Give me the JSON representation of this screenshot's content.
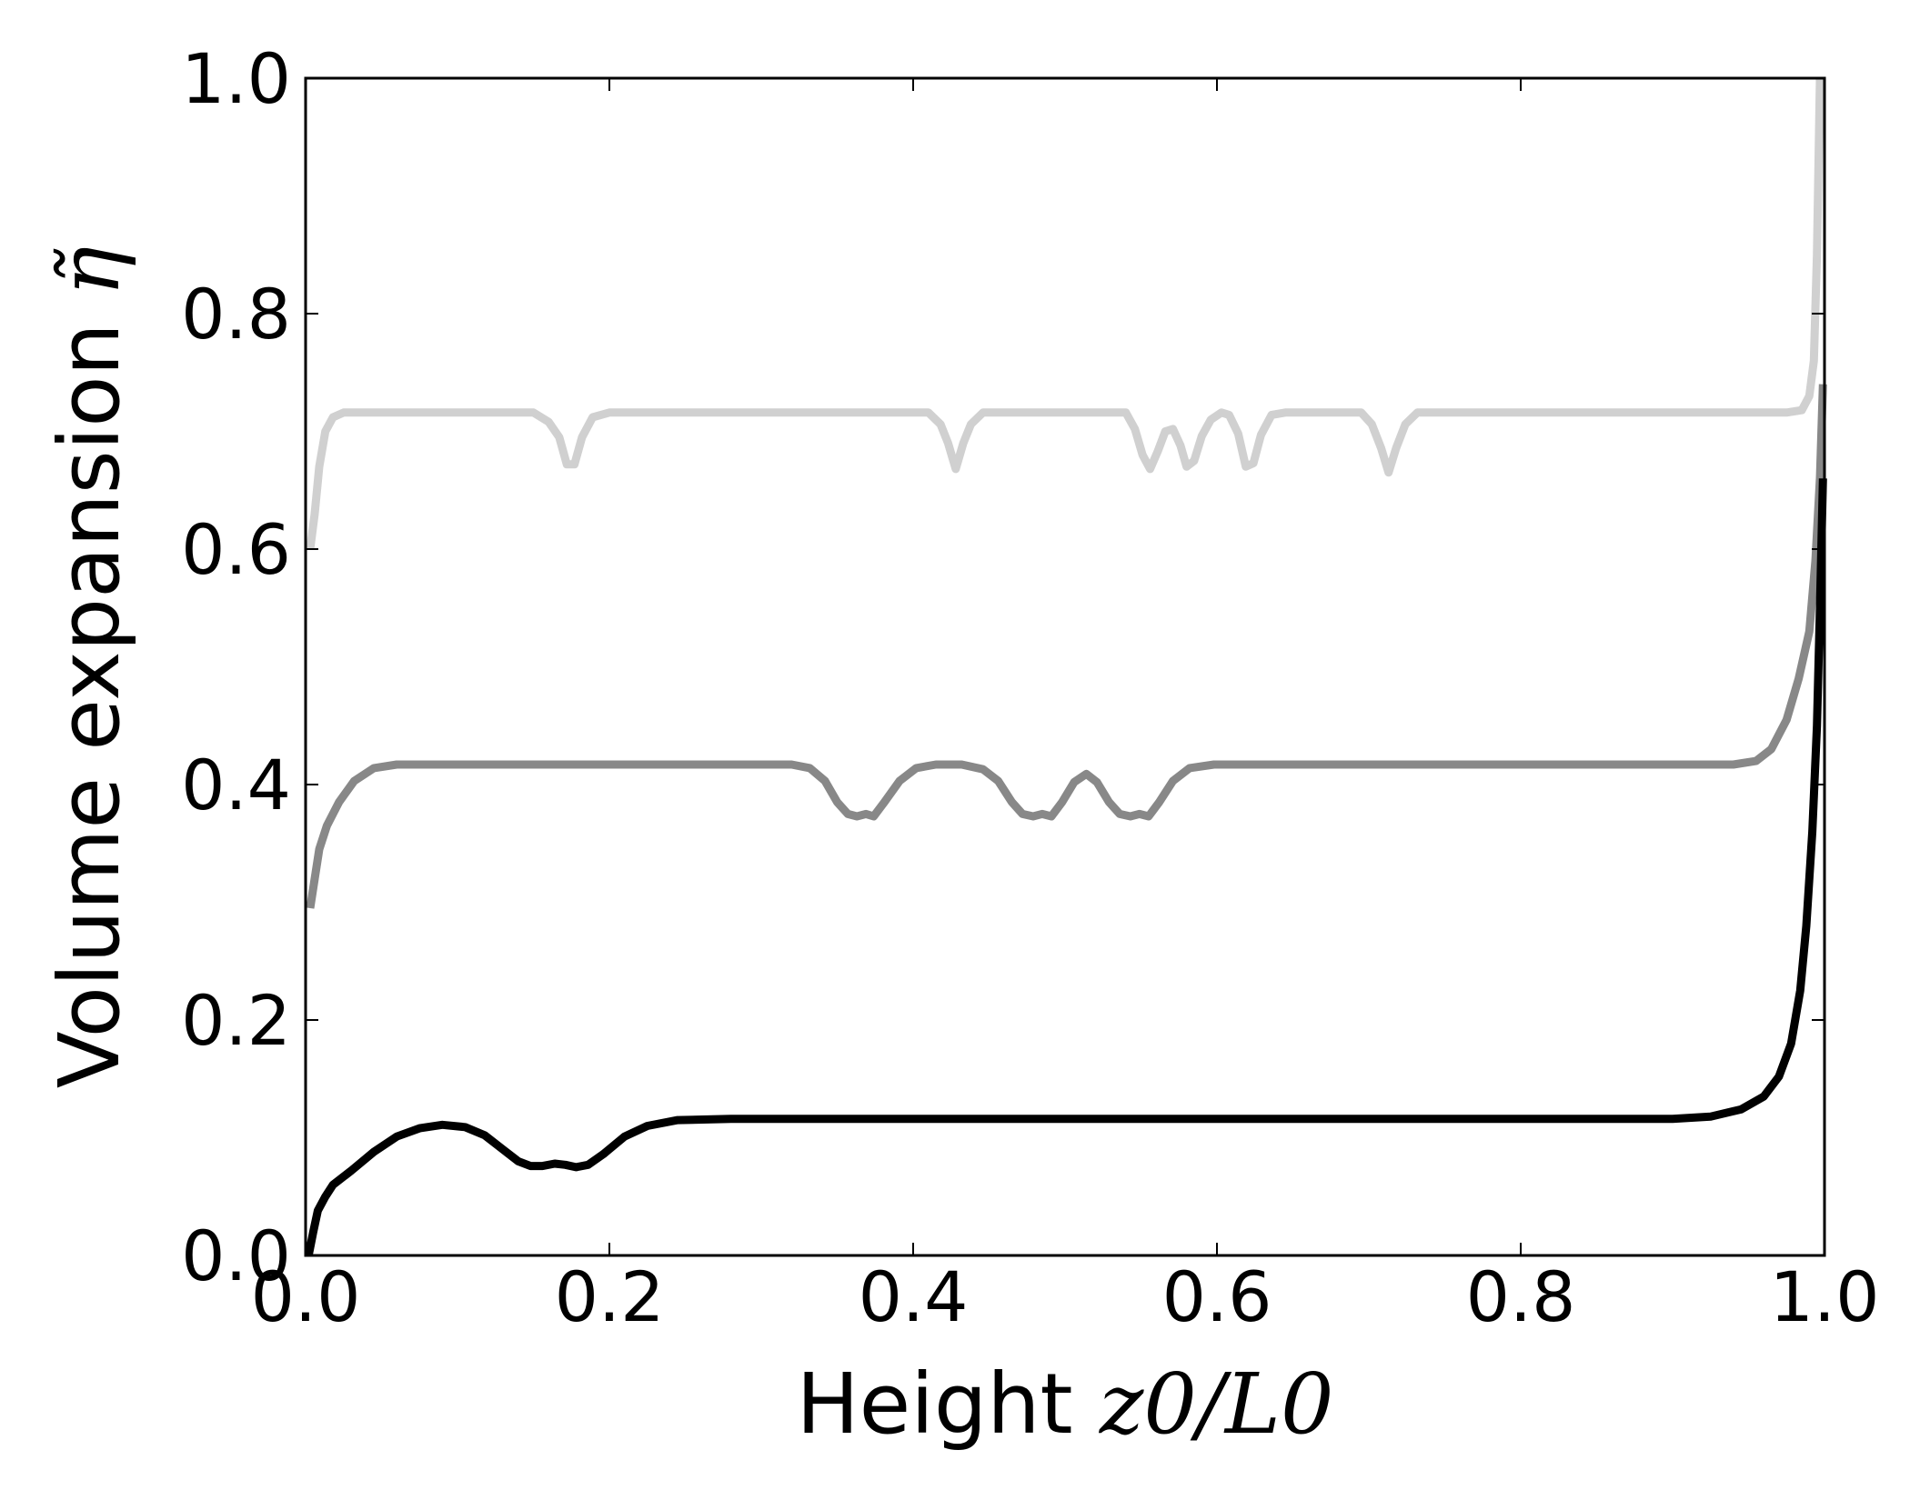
{
  "chart_data": {
    "type": "line",
    "title": "",
    "xlabel": {
      "text": "Height ",
      "math": "z0/L0"
    },
    "ylabel": {
      "text": "Volume expansion ",
      "math": "η̃"
    },
    "xlim": [
      0.0,
      1.0
    ],
    "ylim": [
      0.0,
      1.0
    ],
    "x_ticks": [
      "0.0",
      "0.2",
      "0.4",
      "0.6",
      "0.8",
      "1.0"
    ],
    "y_ticks": [
      "0.0",
      "0.2",
      "0.4",
      "0.6",
      "0.8",
      "1.0"
    ],
    "grid": false,
    "legend": "none",
    "series": [
      {
        "color": "#d0d0d0",
        "points": [
          [
            0.003,
            0.6
          ],
          [
            0.006,
            0.63
          ],
          [
            0.009,
            0.67
          ],
          [
            0.013,
            0.7
          ],
          [
            0.018,
            0.712
          ],
          [
            0.025,
            0.716
          ],
          [
            0.15,
            0.716
          ],
          [
            0.16,
            0.708
          ],
          [
            0.167,
            0.695
          ],
          [
            0.172,
            0.672
          ],
          [
            0.177,
            0.672
          ],
          [
            0.182,
            0.695
          ],
          [
            0.189,
            0.712
          ],
          [
            0.2,
            0.716
          ],
          [
            0.41,
            0.716
          ],
          [
            0.418,
            0.706
          ],
          [
            0.423,
            0.69
          ],
          [
            0.428,
            0.668
          ],
          [
            0.433,
            0.69
          ],
          [
            0.438,
            0.706
          ],
          [
            0.446,
            0.716
          ],
          [
            0.54,
            0.716
          ],
          [
            0.546,
            0.702
          ],
          [
            0.551,
            0.68
          ],
          [
            0.556,
            0.668
          ],
          [
            0.561,
            0.683
          ],
          [
            0.566,
            0.7
          ],
          [
            0.571,
            0.702
          ],
          [
            0.576,
            0.688
          ],
          [
            0.58,
            0.67
          ],
          [
            0.585,
            0.675
          ],
          [
            0.59,
            0.696
          ],
          [
            0.596,
            0.71
          ],
          [
            0.603,
            0.716
          ],
          [
            0.608,
            0.714
          ],
          [
            0.614,
            0.698
          ],
          [
            0.619,
            0.67
          ],
          [
            0.624,
            0.673
          ],
          [
            0.629,
            0.697
          ],
          [
            0.636,
            0.714
          ],
          [
            0.645,
            0.716
          ],
          [
            0.695,
            0.716
          ],
          [
            0.702,
            0.706
          ],
          [
            0.708,
            0.686
          ],
          [
            0.713,
            0.665
          ],
          [
            0.718,
            0.686
          ],
          [
            0.724,
            0.706
          ],
          [
            0.732,
            0.716
          ],
          [
            0.975,
            0.716
          ],
          [
            0.985,
            0.718
          ],
          [
            0.99,
            0.73
          ],
          [
            0.993,
            0.76
          ],
          [
            0.995,
            0.85
          ],
          [
            0.997,
            1.0
          ]
        ]
      },
      {
        "color": "#888888",
        "points": [
          [
            0.003,
            0.295
          ],
          [
            0.006,
            0.32
          ],
          [
            0.009,
            0.345
          ],
          [
            0.014,
            0.365
          ],
          [
            0.022,
            0.385
          ],
          [
            0.032,
            0.403
          ],
          [
            0.045,
            0.414
          ],
          [
            0.06,
            0.417
          ],
          [
            0.32,
            0.417
          ],
          [
            0.332,
            0.414
          ],
          [
            0.342,
            0.403
          ],
          [
            0.35,
            0.385
          ],
          [
            0.357,
            0.375
          ],
          [
            0.363,
            0.373
          ],
          [
            0.369,
            0.375
          ],
          [
            0.374,
            0.373
          ],
          [
            0.381,
            0.385
          ],
          [
            0.391,
            0.403
          ],
          [
            0.402,
            0.414
          ],
          [
            0.415,
            0.417
          ],
          [
            0.432,
            0.417
          ],
          [
            0.446,
            0.413
          ],
          [
            0.456,
            0.403
          ],
          [
            0.465,
            0.385
          ],
          [
            0.472,
            0.375
          ],
          [
            0.479,
            0.373
          ],
          [
            0.485,
            0.375
          ],
          [
            0.491,
            0.373
          ],
          [
            0.498,
            0.385
          ],
          [
            0.506,
            0.402
          ],
          [
            0.514,
            0.409
          ],
          [
            0.521,
            0.402
          ],
          [
            0.529,
            0.385
          ],
          [
            0.536,
            0.375
          ],
          [
            0.543,
            0.373
          ],
          [
            0.549,
            0.375
          ],
          [
            0.555,
            0.373
          ],
          [
            0.562,
            0.385
          ],
          [
            0.571,
            0.403
          ],
          [
            0.582,
            0.414
          ],
          [
            0.598,
            0.417
          ],
          [
            0.94,
            0.417
          ],
          [
            0.955,
            0.42
          ],
          [
            0.965,
            0.43
          ],
          [
            0.975,
            0.455
          ],
          [
            0.983,
            0.49
          ],
          [
            0.99,
            0.53
          ],
          [
            0.994,
            0.59
          ],
          [
            0.997,
            0.66
          ],
          [
            0.999,
            0.74
          ]
        ]
      },
      {
        "color": "#000000",
        "points": [
          [
            0.002,
            0.0
          ],
          [
            0.005,
            0.02
          ],
          [
            0.008,
            0.038
          ],
          [
            0.013,
            0.05
          ],
          [
            0.018,
            0.06
          ],
          [
            0.03,
            0.072
          ],
          [
            0.045,
            0.088
          ],
          [
            0.06,
            0.101
          ],
          [
            0.075,
            0.108
          ],
          [
            0.09,
            0.111
          ],
          [
            0.105,
            0.109
          ],
          [
            0.118,
            0.102
          ],
          [
            0.13,
            0.09
          ],
          [
            0.14,
            0.08
          ],
          [
            0.148,
            0.076
          ],
          [
            0.156,
            0.076
          ],
          [
            0.164,
            0.078
          ],
          [
            0.171,
            0.077
          ],
          [
            0.178,
            0.075
          ],
          [
            0.186,
            0.077
          ],
          [
            0.196,
            0.086
          ],
          [
            0.21,
            0.101
          ],
          [
            0.225,
            0.11
          ],
          [
            0.245,
            0.115
          ],
          [
            0.28,
            0.116
          ],
          [
            0.9,
            0.116
          ],
          [
            0.925,
            0.118
          ],
          [
            0.945,
            0.124
          ],
          [
            0.96,
            0.135
          ],
          [
            0.97,
            0.152
          ],
          [
            0.978,
            0.18
          ],
          [
            0.984,
            0.225
          ],
          [
            0.988,
            0.28
          ],
          [
            0.992,
            0.36
          ],
          [
            0.995,
            0.45
          ],
          [
            0.997,
            0.55
          ],
          [
            0.999,
            0.66
          ]
        ]
      }
    ]
  }
}
